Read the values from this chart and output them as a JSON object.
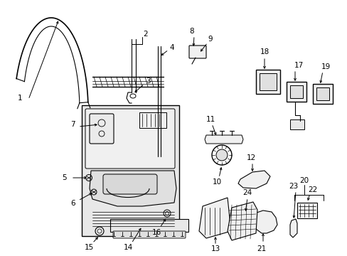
{
  "bg": "#ffffff",
  "lc": "#000000",
  "fig_width": 4.89,
  "fig_height": 3.6,
  "dpi": 100,
  "font_size": 7.5
}
